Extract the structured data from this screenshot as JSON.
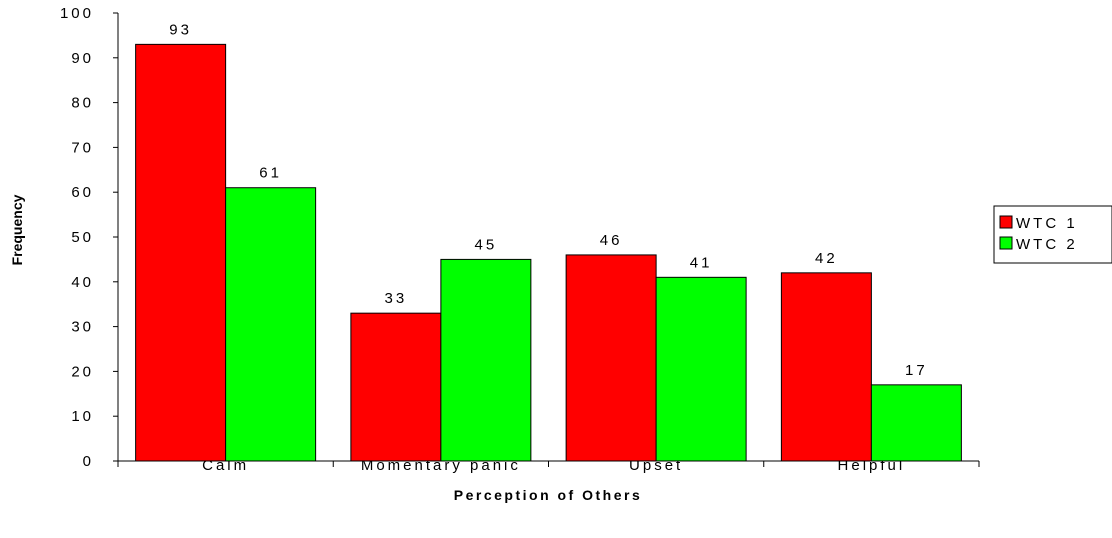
{
  "chart_data": {
    "type": "bar",
    "title": "",
    "xlabel": "Perception of Others",
    "ylabel": "Frequency",
    "categories": [
      "Calm",
      "Momentary panic",
      "Upset",
      "Helpful"
    ],
    "series": [
      {
        "name": "WTC 1",
        "values": [
          93,
          33,
          46,
          42
        ],
        "color": "#ff0000"
      },
      {
        "name": "WTC 2",
        "values": [
          61,
          45,
          41,
          17
        ],
        "color": "#00ff00"
      }
    ],
    "ylim": [
      0,
      100
    ],
    "yticks": [
      0,
      10,
      20,
      30,
      40,
      50,
      60,
      70,
      80,
      90,
      100
    ],
    "grid": false,
    "legend": "right",
    "data_labels": true
  }
}
